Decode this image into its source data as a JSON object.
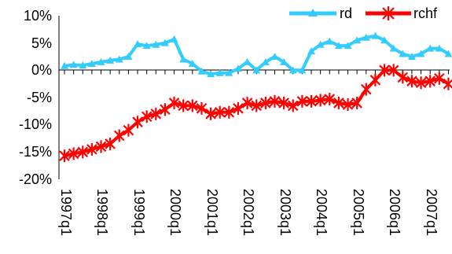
{
  "chart_data": {
    "type": "line",
    "title": "",
    "xlabel": "",
    "ylabel": "",
    "ylim": [
      -0.2,
      0.1
    ],
    "y_ticks": [
      "10%",
      "5%",
      "0%",
      "-5%",
      "-10%",
      "-15%",
      "-20%"
    ],
    "y_tick_values": [
      0.1,
      0.05,
      0.0,
      -0.05,
      -0.1,
      -0.15,
      -0.2
    ],
    "x": [
      "1997q1",
      "1997q2",
      "1997q3",
      "1997q4",
      "1998q1",
      "1998q2",
      "1998q3",
      "1998q4",
      "1999q1",
      "1999q2",
      "1999q3",
      "1999q4",
      "2000q1",
      "2000q2",
      "2000q3",
      "2000q4",
      "2001q1",
      "2001q2",
      "2001q3",
      "2001q4",
      "2002q1",
      "2002q2",
      "2002q3",
      "2002q4",
      "2003q1",
      "2003q2",
      "2003q3",
      "2003q4",
      "2004q1",
      "2004q2",
      "2004q3",
      "2004q4",
      "2005q1",
      "2005q2",
      "2005q3",
      "2005q4",
      "2006q1",
      "2006q2",
      "2006q3",
      "2006q4",
      "2007q1",
      "2007q2",
      "2007q3"
    ],
    "x_tick_labels": [
      "1997q1",
      "1998q1",
      "1999q1",
      "2000q1",
      "2001q1",
      "2002q1",
      "2003q1",
      "2004q1",
      "2005q1",
      "2006q1",
      "2007q1"
    ],
    "legend_position": "top-right",
    "grid": false,
    "series": [
      {
        "name": "rd",
        "color": "#33CCFF",
        "marker": "triangle",
        "values": [
          0.008,
          0.01,
          0.009,
          0.012,
          0.015,
          0.018,
          0.02,
          0.025,
          0.048,
          0.045,
          0.047,
          0.05,
          0.057,
          0.02,
          0.012,
          -0.002,
          -0.007,
          -0.005,
          -0.005,
          0.003,
          0.015,
          0.0,
          0.015,
          0.025,
          0.015,
          0.0,
          0.0,
          0.035,
          0.047,
          0.053,
          0.045,
          0.045,
          0.055,
          0.06,
          0.063,
          0.055,
          0.04,
          0.03,
          0.025,
          0.03,
          0.04,
          0.04,
          0.03
        ]
      },
      {
        "name": "rchf",
        "color": "#FF0000",
        "marker": "star",
        "values": [
          -0.157,
          -0.153,
          -0.15,
          -0.145,
          -0.14,
          -0.135,
          -0.12,
          -0.11,
          -0.095,
          -0.085,
          -0.08,
          -0.072,
          -0.06,
          -0.065,
          -0.065,
          -0.07,
          -0.08,
          -0.077,
          -0.077,
          -0.07,
          -0.06,
          -0.065,
          -0.06,
          -0.057,
          -0.06,
          -0.065,
          -0.057,
          -0.057,
          -0.055,
          -0.053,
          -0.06,
          -0.063,
          -0.06,
          -0.035,
          -0.018,
          0.0,
          0.0,
          -0.013,
          -0.02,
          -0.023,
          -0.02,
          -0.015,
          -0.025
        ]
      }
    ]
  }
}
